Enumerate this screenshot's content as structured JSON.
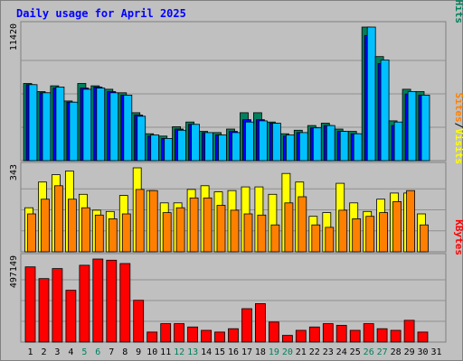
{
  "chart_data": {
    "type": "bar",
    "title": "Daily usage for April 2025",
    "categories": [
      "1",
      "2",
      "3",
      "4",
      "5",
      "6",
      "7",
      "8",
      "9",
      "10",
      "11",
      "12",
      "13",
      "14",
      "15",
      "16",
      "17",
      "18",
      "19",
      "20",
      "21",
      "22",
      "23",
      "24",
      "25",
      "26",
      "27",
      "28",
      "29",
      "30",
      "31"
    ],
    "weekend_days": [
      "5",
      "6",
      "12",
      "13",
      "19",
      "20",
      "26",
      "27"
    ],
    "panels": [
      {
        "id": "hits-files-pages",
        "ylabel_parts": [
          "Pages",
          "/",
          "Files",
          "/",
          "Hits"
        ],
        "max_label": "11420",
        "ymax": 11420,
        "series": [
          {
            "name": "Hits",
            "color": "#00805c",
            "values": [
              6600,
              5900,
              6400,
              5100,
              6600,
              6400,
              6100,
              5800,
              4100,
              2300,
              2100,
              2900,
              3300,
              2500,
              2400,
              2700,
              4100,
              4100,
              3300,
              2300,
              2600,
              3000,
              3200,
              2700,
              2500,
              11420,
              8900,
              3400,
              6100,
              5900,
              0
            ]
          },
          {
            "name": "Files",
            "color": "#0000ff",
            "values": [
              6500,
              5800,
              6200,
              5000,
              6200,
              6300,
              5900,
              5600,
              3900,
              2100,
              1900,
              2700,
              3100,
              2400,
              2200,
              2500,
              3500,
              3500,
              3200,
              2100,
              2400,
              2800,
              3000,
              2500,
              2300,
              10700,
              8300,
              3000,
              5700,
              5600,
              0
            ]
          },
          {
            "name": "Pages",
            "color": "#00c0ff",
            "values": [
              6500,
              5800,
              6300,
              5000,
              6100,
              6200,
              5800,
              5600,
              3800,
              2200,
              1900,
              2600,
              3100,
              2400,
              2200,
              2400,
              3300,
              3400,
              3200,
              2200,
              2400,
              2800,
              3000,
              2500,
              2300,
              11420,
              8600,
              3300,
              5900,
              5600,
              0
            ]
          }
        ]
      },
      {
        "id": "visits-sites",
        "ylabel_parts": [
          "Sites",
          "/",
          "Visits"
        ],
        "max_label": "343",
        "ymax": 343,
        "series": [
          {
            "name": "Visits",
            "color": "#ffff00",
            "values": [
              180,
              285,
              315,
              330,
              235,
              170,
              165,
              230,
              343,
              250,
              200,
              200,
              255,
              270,
              245,
              250,
              265,
              265,
              235,
              320,
              285,
              145,
              160,
              280,
              200,
              165,
              215,
              240,
              240,
              155,
              0
            ]
          },
          {
            "name": "Sites",
            "color": "#ff8000",
            "values": [
              155,
              215,
              270,
              215,
              180,
              150,
              135,
              155,
              255,
              250,
              160,
              180,
              220,
              220,
              190,
              170,
              155,
              150,
              110,
              200,
              225,
              110,
              100,
              170,
              135,
              145,
              160,
              205,
              250,
              110,
              0
            ]
          }
        ]
      },
      {
        "id": "kbytes",
        "ylabel_parts": [
          "KBytes"
        ],
        "max_label": "497149",
        "ymax": 497149,
        "series": [
          {
            "name": "KBytes",
            "color": "#ff0000",
            "values": [
              450000,
              380000,
              440000,
              310000,
              460000,
              497149,
              490000,
              470000,
              250000,
              60000,
              110000,
              110000,
              90000,
              70000,
              60000,
              80000,
              200000,
              230000,
              120000,
              40000,
              70000,
              90000,
              110000,
              100000,
              70000,
              110000,
              80000,
              70000,
              130000,
              60000,
              0
            ]
          }
        ]
      }
    ],
    "colors": {
      "background": "#c0c0c0",
      "title": "#0000ff",
      "grid": "#808080",
      "weekday_label": "#000000",
      "weekend_label": "#00805c",
      "hits": "#00805c",
      "files": "#0000ff",
      "pages": "#00c0ff",
      "visits": "#ffff00",
      "sites": "#ff8000",
      "kbytes": "#ff0000"
    }
  }
}
